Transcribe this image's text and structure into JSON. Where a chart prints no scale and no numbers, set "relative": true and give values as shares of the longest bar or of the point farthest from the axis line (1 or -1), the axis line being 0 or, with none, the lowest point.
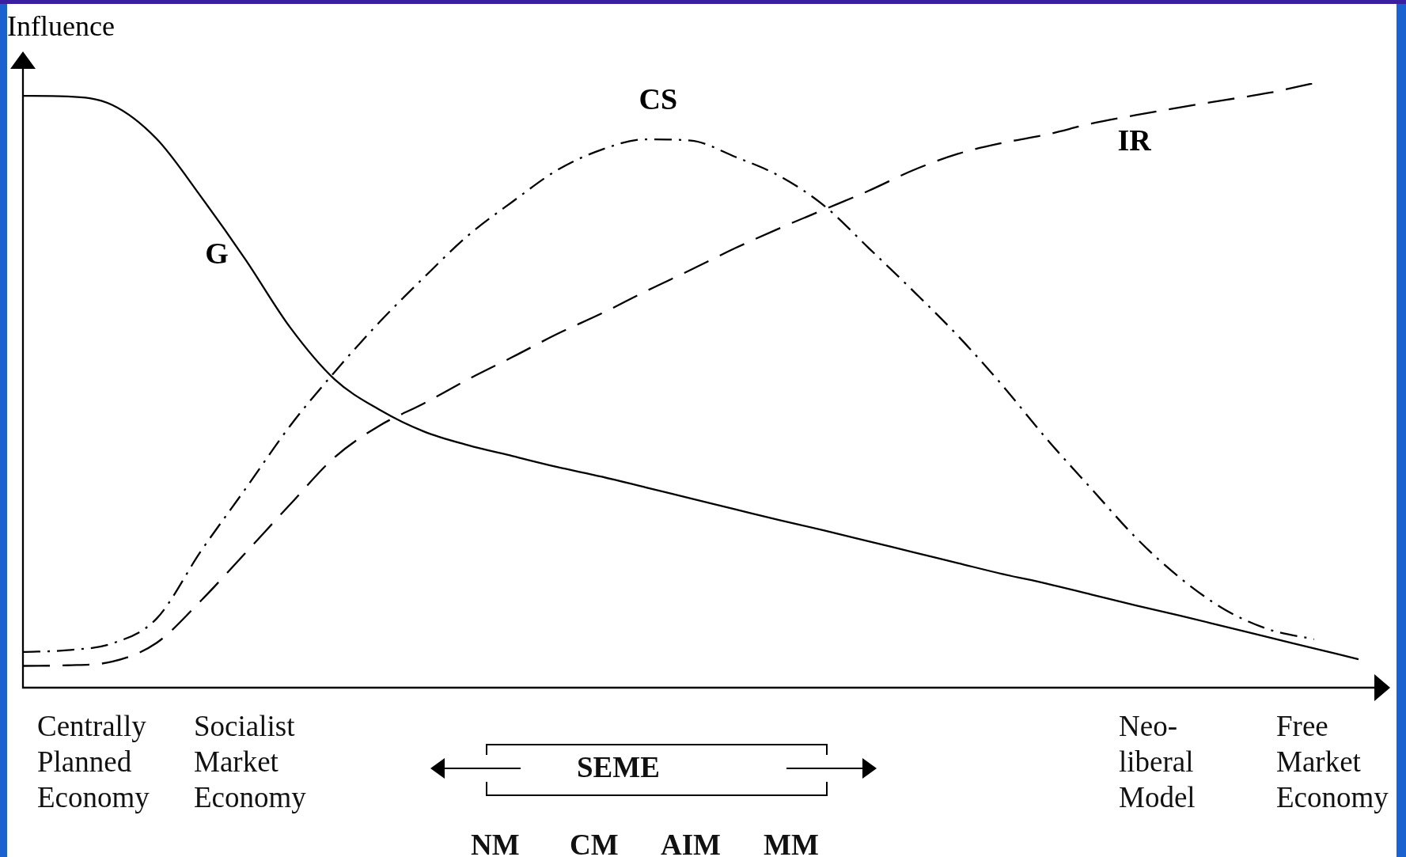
{
  "chart_data": {
    "type": "line",
    "ylabel": "Influence",
    "relative": true,
    "tick_labels": false,
    "marker": "none",
    "categories": [
      null,
      null,
      null,
      null,
      null,
      null,
      null,
      null,
      null,
      null,
      null,
      null,
      null,
      null,
      null,
      null,
      null,
      null,
      null,
      null,
      null,
      null,
      null,
      null,
      null,
      null,
      null,
      null,
      null,
      null,
      null
    ],
    "series": [
      {
        "name": "G",
        "color": "#000000",
        "line_style": "solid",
        "values": [
          0.979,
          0.978,
          0.964,
          0.908,
          0.812,
          0.708,
          0.596,
          0.51,
          0.46,
          0.424,
          0.401,
          0.383,
          0.365,
          0.349,
          0.331,
          0.313,
          0.295,
          0.277,
          0.26,
          0.242,
          0.224,
          0.206,
          0.188,
          0.172,
          0.154,
          0.136,
          0.119,
          0.101,
          0.083,
          0.065,
          0.047
        ]
      },
      {
        "name": "CS",
        "color": "#000000",
        "line_style": "dotted",
        "values": [
          0.059,
          0.062,
          0.073,
          0.114,
          0.226,
          0.329,
          0.433,
          0.522,
          0.604,
          0.678,
          0.748,
          0.804,
          0.856,
          0.89,
          0.907,
          0.905,
          0.878,
          0.846,
          0.797,
          0.727,
          0.656,
          0.582,
          0.5,
          0.411,
          0.329,
          0.248,
          0.181,
          0.129,
          0.096,
          0.08,
          null
        ]
      },
      {
        "name": "IR",
        "color": "#000000",
        "line_style": "dashed",
        "values": [
          0.036,
          0.037,
          0.043,
          0.074,
          0.144,
          0.223,
          0.303,
          0.381,
          0.433,
          0.47,
          0.51,
          0.547,
          0.585,
          0.619,
          0.656,
          0.691,
          0.727,
          0.76,
          0.791,
          0.822,
          0.856,
          0.883,
          0.901,
          0.915,
          0.933,
          0.947,
          0.96,
          0.972,
          0.984,
          1,
          null
        ]
      }
    ],
    "annotations": [
      "Centrally\nPlanned\nEconomy",
      "Socialist\nMarket\nEconomy",
      "SEME",
      "Neo-\nliberal\nModel",
      "Free\nMarket\nEconomy",
      "NM",
      "CM",
      "AIM",
      "MM"
    ]
  }
}
